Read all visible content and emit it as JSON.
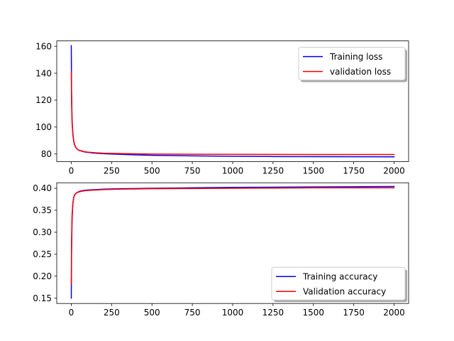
{
  "chart_data": [
    {
      "type": "line",
      "title": "",
      "xlabel": "",
      "ylabel": "",
      "xlim": [
        -90,
        2090
      ],
      "ylim": [
        74.3,
        164.0
      ],
      "xticks": [
        0,
        250,
        500,
        750,
        1000,
        1250,
        1500,
        1750,
        2000
      ],
      "yticks": [
        80,
        100,
        120,
        140,
        160
      ],
      "xtick_labels": [
        "0",
        "250",
        "500",
        "750",
        "1000",
        "1250",
        "1500",
        "1750",
        "2000"
      ],
      "ytick_labels": [
        "80",
        "100",
        "120",
        "140",
        "160"
      ],
      "legend_position": "upper right",
      "grid": false,
      "series": [
        {
          "name": "Training loss",
          "color": "#0000ff",
          "x": [
            0,
            2,
            5,
            10,
            15,
            20,
            30,
            40,
            50,
            75,
            100,
            150,
            200,
            300,
            400,
            500,
            750,
            1000,
            1250,
            1500,
            1750,
            2000
          ],
          "y": [
            160.5,
            125,
            105,
            95,
            90,
            87,
            84.5,
            83.3,
            82.6,
            81.7,
            81.2,
            80.6,
            80.2,
            79.7,
            79.3,
            79.0,
            78.6,
            78.3,
            78.1,
            78.0,
            77.95,
            77.9
          ]
        },
        {
          "name": "validation loss",
          "color": "#ff0000",
          "x": [
            0,
            2,
            5,
            10,
            15,
            20,
            30,
            40,
            50,
            75,
            100,
            150,
            200,
            300,
            400,
            500,
            750,
            1000,
            1250,
            1500,
            1750,
            2000
          ],
          "y": [
            141,
            118,
            103,
            94,
            89.5,
            86.8,
            84.4,
            83.3,
            82.7,
            81.9,
            81.4,
            80.9,
            80.6,
            80.3,
            80.1,
            79.95,
            79.8,
            79.7,
            79.65,
            79.6,
            79.6,
            79.6
          ]
        }
      ]
    },
    {
      "type": "line",
      "title": "",
      "xlabel": "",
      "ylabel": "",
      "xlim": [
        -90,
        2090
      ],
      "ylim": [
        0.138,
        0.4125
      ],
      "xticks": [
        0,
        250,
        500,
        750,
        1000,
        1250,
        1500,
        1750,
        2000
      ],
      "yticks": [
        0.15,
        0.2,
        0.25,
        0.3,
        0.35,
        0.4
      ],
      "xtick_labels": [
        "0",
        "250",
        "500",
        "750",
        "1000",
        "1250",
        "1500",
        "1750",
        "2000"
      ],
      "ytick_labels": [
        "0.15",
        "0.20",
        "0.25",
        "0.30",
        "0.35",
        "0.40"
      ],
      "legend_position": "lower right",
      "grid": false,
      "series": [
        {
          "name": "Training accuracy",
          "color": "#0000ff",
          "x": [
            0,
            2,
            5,
            10,
            15,
            20,
            30,
            40,
            50,
            75,
            100,
            150,
            200,
            300,
            400,
            500,
            750,
            1000,
            1250,
            1500,
            1750,
            2000
          ],
          "y": [
            0.15,
            0.26,
            0.33,
            0.365,
            0.378,
            0.384,
            0.389,
            0.391,
            0.393,
            0.395,
            0.396,
            0.397,
            0.398,
            0.399,
            0.3995,
            0.4,
            0.401,
            0.402,
            0.4025,
            0.403,
            0.4035,
            0.404
          ]
        },
        {
          "name": "Validation accuracy",
          "color": "#ff0000",
          "x": [
            0,
            2,
            5,
            10,
            15,
            20,
            30,
            40,
            50,
            75,
            100,
            150,
            200,
            300,
            400,
            500,
            750,
            1000,
            1250,
            1500,
            1750,
            2000
          ],
          "y": [
            0.182,
            0.285,
            0.34,
            0.367,
            0.379,
            0.385,
            0.389,
            0.391,
            0.392,
            0.394,
            0.395,
            0.396,
            0.397,
            0.398,
            0.3985,
            0.399,
            0.3995,
            0.4,
            0.4005,
            0.401,
            0.401,
            0.401
          ]
        }
      ]
    }
  ]
}
